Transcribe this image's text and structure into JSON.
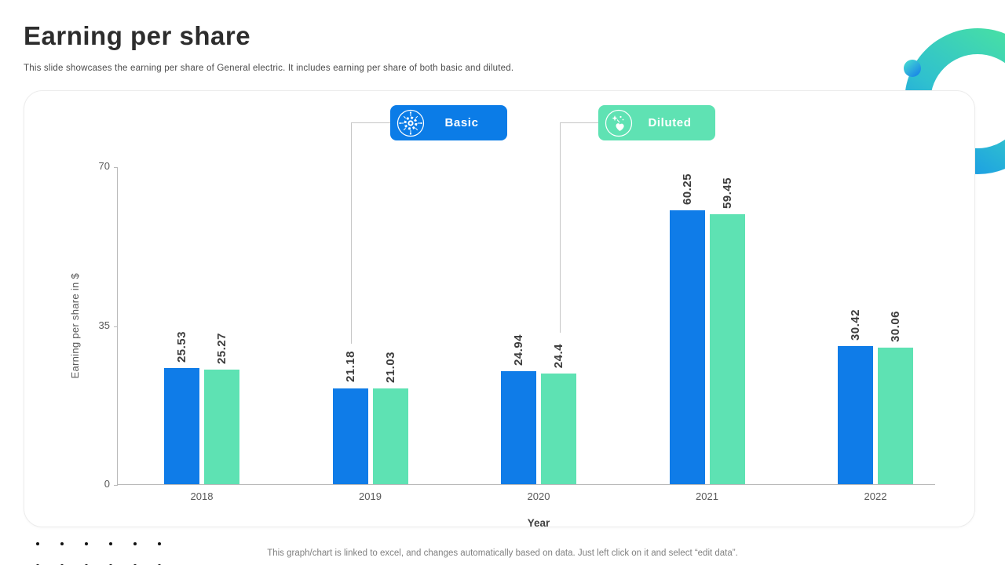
{
  "slide": {
    "title": "Earning per share",
    "subtitle": "This slide showcases the earning per share of General electric. It includes earning per share of both basic and diluted.",
    "footer_note": "This graph/chart is linked to excel, and changes automatically based on data. Just left click on it and select “edit data”."
  },
  "legend": {
    "basic": {
      "label": "Basic",
      "icon": "gear-network-icon",
      "color": "#0b7ce7"
    },
    "diluted": {
      "label": "Diluted",
      "icon": "sparkle-heart-icon",
      "color": "#5fe2b3"
    }
  },
  "chart_data": {
    "type": "bar",
    "categories": [
      "2018",
      "2019",
      "2020",
      "2021",
      "2022"
    ],
    "series": [
      {
        "name": "Basic",
        "color": "#0f7ce8",
        "values": [
          25.53,
          21.18,
          24.94,
          60.25,
          30.42
        ]
      },
      {
        "name": "Diluted",
        "color": "#5ee2b3",
        "values": [
          25.27,
          21.03,
          24.4,
          59.45,
          30.06
        ]
      }
    ],
    "xlabel": "Year",
    "ylabel": "Earning per share in $",
    "ylim": [
      0,
      70
    ],
    "yticks": [
      0,
      35,
      70
    ],
    "grid": false,
    "legend_position": "top-floating-buttons",
    "value_label_rotation": -90
  },
  "colors": {
    "bar_basic": "#0f7ce8",
    "bar_diluted": "#5ee2b3",
    "axis_line": "#b9b9b9",
    "tick_text": "#595959",
    "value_label_text": "#3d3d3d",
    "title_text": "#2d2d2d",
    "footer_text": "#808080",
    "ring_green": "#4ae3a0",
    "ring_blue": "#118bf0"
  }
}
